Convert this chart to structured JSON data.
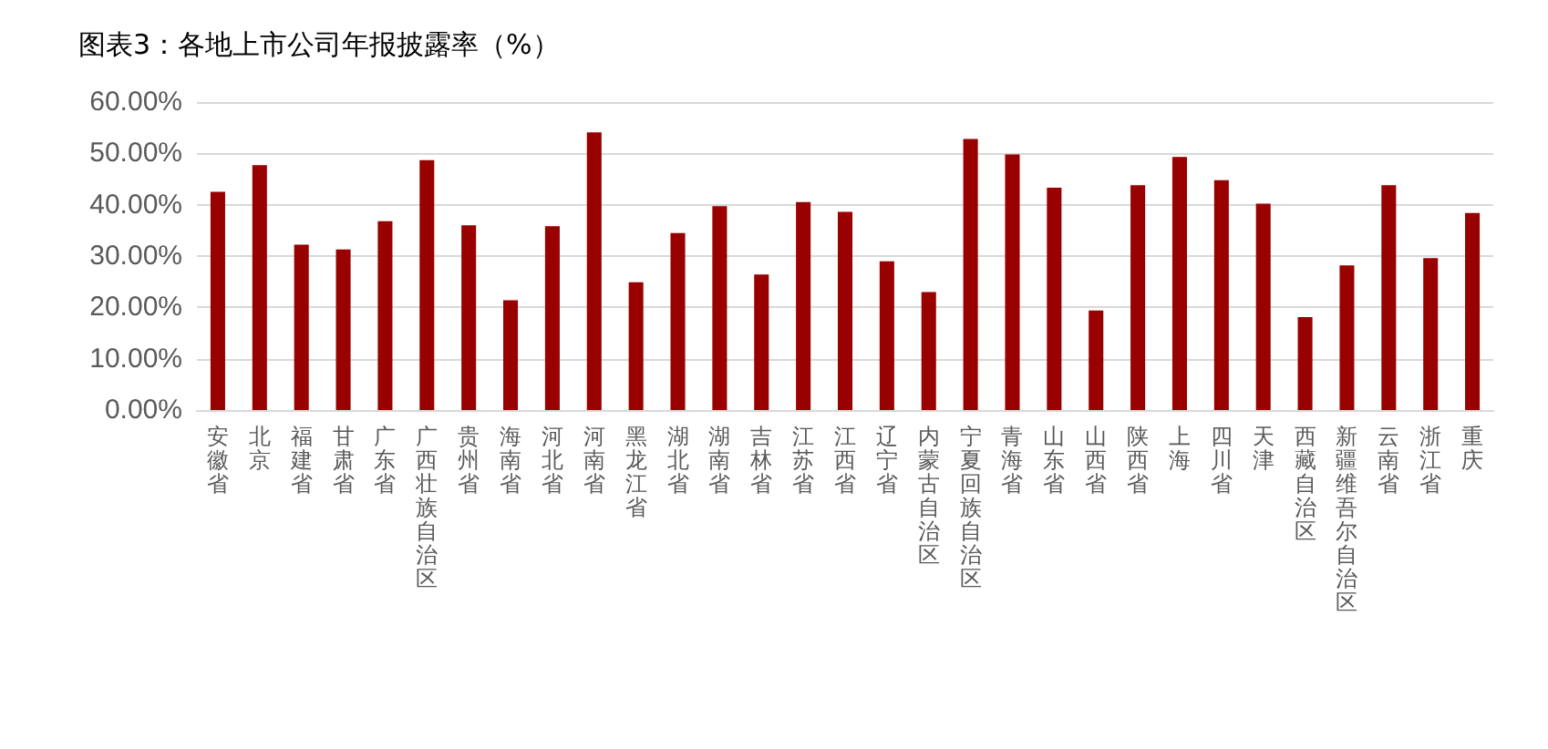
{
  "chart_data": {
    "type": "bar",
    "title": "图表3：各地上市公司年报披露率（%）",
    "categories": [
      "安徽省",
      "北京",
      "福建省",
      "甘肃省",
      "广东省",
      "广西壮族自治区",
      "贵州省",
      "海南省",
      "河北省",
      "河南省",
      "黑龙江省",
      "湖北省",
      "湖南省",
      "吉林省",
      "江苏省",
      "江西省",
      "辽宁省",
      "内蒙古自治区",
      "宁夏回族自治区",
      "青海省",
      "山东省",
      "山西省",
      "陕西省",
      "上海",
      "四川省",
      "天津",
      "西藏自治区",
      "新疆维吾尔自治区",
      "云南省",
      "浙江省",
      "重庆"
    ],
    "values": [
      42.5,
      47.7,
      32.2,
      31.3,
      36.8,
      48.7,
      36.0,
      21.4,
      35.8,
      54.1,
      24.9,
      34.5,
      39.7,
      26.4,
      40.5,
      38.6,
      29.0,
      23.0,
      52.8,
      49.8,
      43.3,
      19.4,
      43.8,
      49.3,
      44.8,
      40.2,
      18.1,
      28.2,
      43.8,
      29.6,
      38.4
    ],
    "color": "#990000",
    "ylim": [
      0,
      60
    ],
    "yticks": [
      {
        "value": 0,
        "label": "0.00%"
      },
      {
        "value": 10,
        "label": "10.00%"
      },
      {
        "value": 20,
        "label": "20.00%"
      },
      {
        "value": 30,
        "label": "30.00%"
      },
      {
        "value": 40,
        "label": "40.00%"
      },
      {
        "value": 50,
        "label": "50.00%"
      },
      {
        "value": 60,
        "label": "60.00%"
      }
    ],
    "grid": "y"
  }
}
